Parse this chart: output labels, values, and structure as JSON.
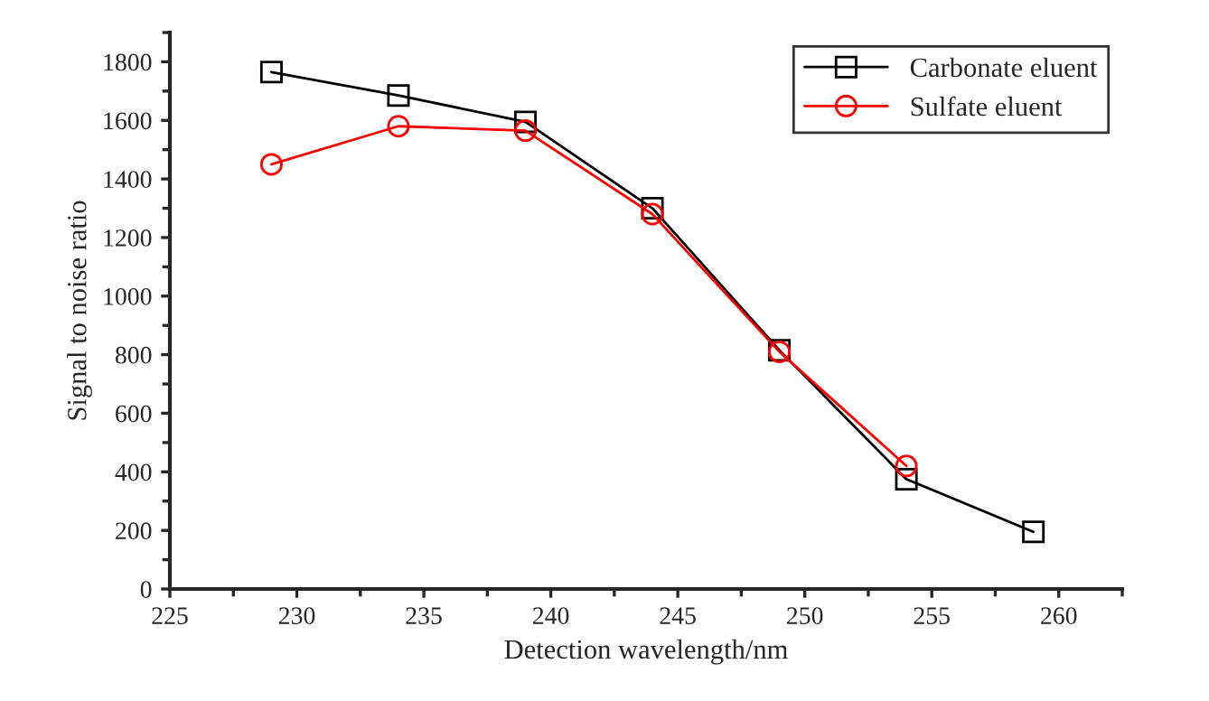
{
  "chart_data": {
    "type": "line",
    "xlabel": "Detection wavelength/nm",
    "ylabel": "Signal to noise ratio",
    "x": [
      229,
      234,
      239,
      244,
      249,
      254,
      259
    ],
    "series": [
      {
        "name": "Carbonate eluent",
        "color": "#000000",
        "marker": "square",
        "values": [
          1765,
          1685,
          1595,
          1300,
          815,
          375,
          195
        ]
      },
      {
        "name": "Sulfate eluent",
        "color": "#ff0000",
        "marker": "circle",
        "values": [
          1450,
          1580,
          1565,
          1280,
          810,
          420,
          null
        ]
      }
    ],
    "xlim": [
      225,
      262.5
    ],
    "xticks": [
      225,
      230,
      235,
      240,
      245,
      250,
      255,
      260
    ],
    "ylim": [
      0,
      1900
    ],
    "yticks": [
      0,
      200,
      400,
      600,
      800,
      1000,
      1200,
      1400,
      1600,
      1800
    ],
    "grid": false,
    "legend": "top right",
    "line_style": "solid"
  }
}
